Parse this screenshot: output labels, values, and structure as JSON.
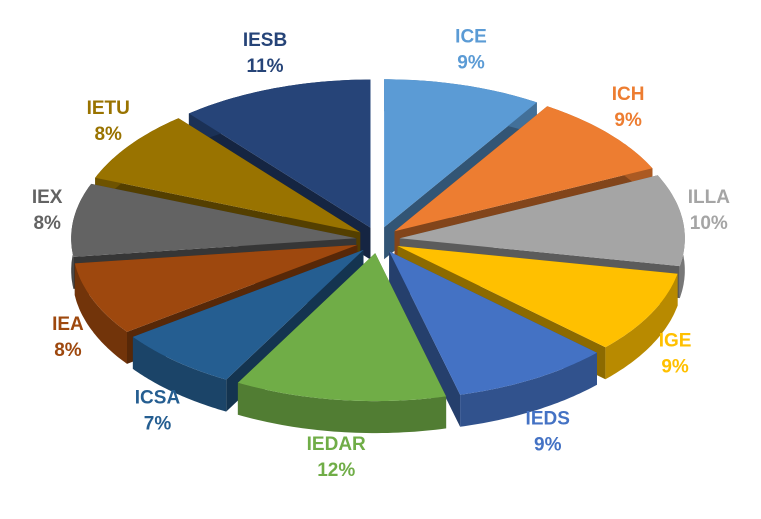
{
  "chart_data": {
    "type": "pie",
    "categories": [
      "ICE",
      "ICH",
      "ILLA",
      "IGE",
      "IEDS",
      "IEDAR",
      "ICSA",
      "IEA",
      "IEX",
      "IETU",
      "IESB"
    ],
    "values": [
      9,
      9,
      10,
      9,
      9,
      12,
      7,
      8,
      8,
      8,
      11
    ],
    "value_labels": [
      "9%",
      "9%",
      "10%",
      "9%",
      "9%",
      "12%",
      "7%",
      "8%",
      "8%",
      "8%",
      "11%"
    ],
    "colors": [
      "#5b9bd5",
      "#ed7d31",
      "#a5a5a5",
      "#ffc000",
      "#4472c4",
      "#70ad47",
      "#255e91",
      "#9e480e",
      "#636363",
      "#997300",
      "#264478"
    ]
  }
}
